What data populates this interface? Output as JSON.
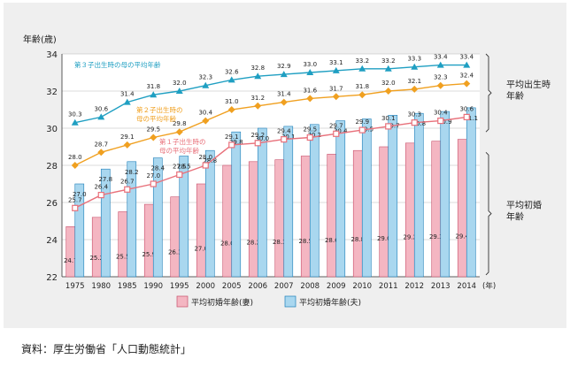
{
  "source_note": "資料：厚生労働省「人口動態統計」",
  "chart_data": {
    "type": "bar",
    "ylabel": "年齢(歳)",
    "x_unit": "(年)",
    "ylim": [
      22,
      34
    ],
    "yticks": [
      22,
      24,
      26,
      28,
      30,
      32,
      34
    ],
    "grid": true,
    "categories": [
      "1975",
      "1980",
      "1985",
      "1990",
      "1995",
      "2000",
      "2005",
      "2006",
      "2007",
      "2008",
      "2009",
      "2010",
      "2011",
      "2012",
      "2013",
      "2014"
    ],
    "bar_series": [
      {
        "name": "平均初婚年齢(妻)",
        "color": "#f4b6c2",
        "edge": "#c8506b",
        "values": [
          24.7,
          25.2,
          25.5,
          25.9,
          26.3,
          27.0,
          28.0,
          28.2,
          28.3,
          28.5,
          28.6,
          28.8,
          29.0,
          29.2,
          29.3,
          29.4
        ]
      },
      {
        "name": "平均初婚年齢(夫)",
        "color": "#a9d7ef",
        "edge": "#1e7fb8",
        "values": [
          27.0,
          27.8,
          28.2,
          28.4,
          28.5,
          28.8,
          29.8,
          30.0,
          30.1,
          30.2,
          30.4,
          30.5,
          30.7,
          30.8,
          30.9,
          31.1
        ]
      }
    ],
    "line_series": [
      {
        "name": "第３子出生時の母の平均年齢",
        "color": "#1f9fc2",
        "marker": "triangle",
        "values": [
          30.3,
          30.6,
          31.4,
          31.8,
          32.0,
          32.3,
          32.6,
          32.8,
          32.9,
          33.0,
          33.1,
          33.2,
          33.2,
          33.3,
          33.4,
          33.4
        ]
      },
      {
        "name": "第２子出生時の母の平均年齢",
        "color": "#f0a020",
        "marker": "diamond",
        "values": [
          28.0,
          28.7,
          29.1,
          29.5,
          29.8,
          30.4,
          31.0,
          31.2,
          31.4,
          31.6,
          31.7,
          31.8,
          32.0,
          32.1,
          32.3,
          32.4
        ]
      },
      {
        "name": "第１子出生時の母の平均年齢",
        "color": "#e8707a",
        "marker": "square",
        "values": [
          25.7,
          26.4,
          26.7,
          27.0,
          27.5,
          28.0,
          29.1,
          29.2,
          29.4,
          29.5,
          29.7,
          29.9,
          30.1,
          30.3,
          30.4,
          30.6
        ]
      }
    ],
    "series_annotations": [
      {
        "lines": [
          "第３子出生時の母の平均年齢"
        ]
      },
      {
        "lines": [
          "第２子出生時の",
          "母の平均年齢"
        ]
      },
      {
        "lines": [
          "第１子出生時の",
          "母の平均年齢"
        ]
      }
    ],
    "right_labels": [
      {
        "lines": [
          "平均出生時",
          "年齢"
        ]
      },
      {
        "lines": [
          "平均初婚",
          "年齢"
        ]
      }
    ],
    "legend_position": "bottom"
  }
}
